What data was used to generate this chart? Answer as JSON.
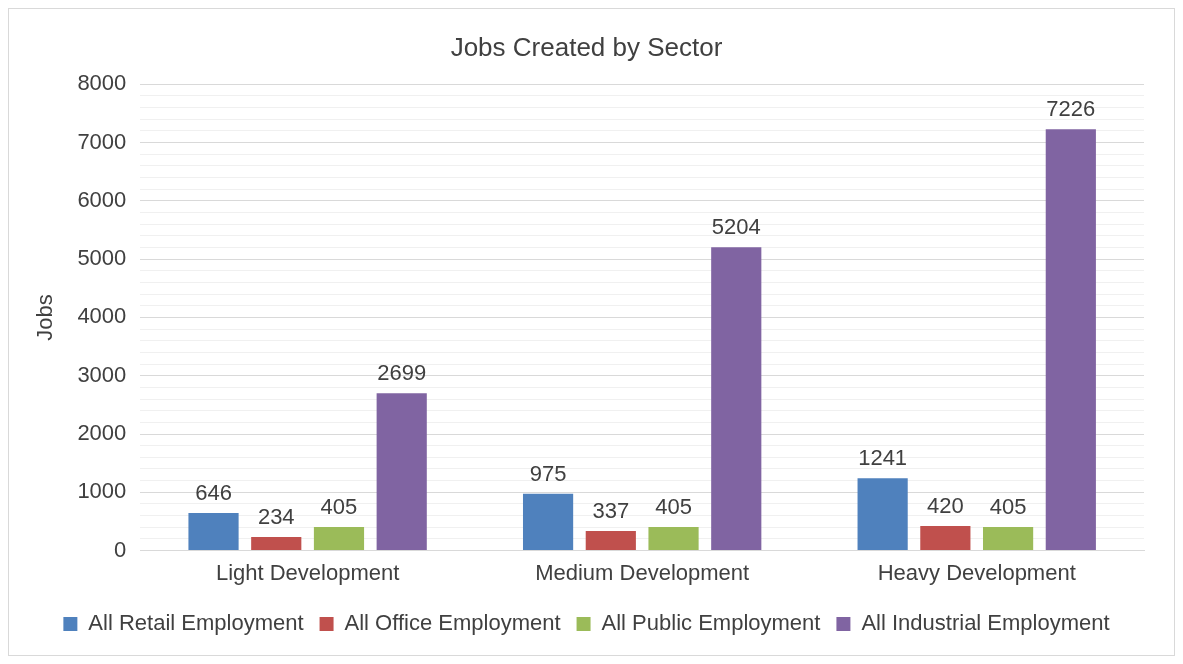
{
  "chart_data": {
    "type": "bar",
    "title": "Jobs Created by Sector",
    "ylabel": "Jobs",
    "categories": [
      "Light Development",
      "Medium Development",
      "Heavy Development"
    ],
    "series": [
      {
        "name": "All Retail Employment",
        "color": "#4f81bd",
        "values": [
          646,
          975,
          1241
        ]
      },
      {
        "name": "All Office Employment",
        "color": "#c0504d",
        "values": [
          234,
          337,
          420
        ]
      },
      {
        "name": "All Public Employment",
        "color": "#9bbb59",
        "values": [
          405,
          405,
          405
        ]
      },
      {
        "name": "All Industrial Employment",
        "color": "#8064a2",
        "values": [
          2699,
          5204,
          7226
        ]
      }
    ],
    "ylim": [
      0,
      8000
    ],
    "yticks": [
      0,
      {
        "value": 200,
        "label": null
      },
      {
        "value": 400,
        "label": null
      },
      {
        "value": 600,
        "label": null
      },
      {
        "value": 800,
        "label": null
      },
      1000,
      {
        "value": 1200,
        "label": null
      },
      {
        "value": 1400,
        "label": null
      },
      {
        "value": 1600,
        "label": null
      },
      {
        "value": 1800,
        "label": null
      },
      2000,
      {
        "value": 2200,
        "label": null
      },
      {
        "value": 2400,
        "label": null
      },
      {
        "value": 2600,
        "label": null
      },
      {
        "value": 2800,
        "label": null
      },
      3000,
      {
        "value": 3200,
        "label": null
      },
      {
        "value": 3400,
        "label": null
      },
      {
        "value": 3600,
        "label": null
      },
      {
        "value": 3800,
        "label": null
      },
      4000,
      {
        "value": 4200,
        "label": null
      },
      {
        "value": 4400,
        "label": null
      },
      {
        "value": 4600,
        "label": null
      },
      {
        "value": 4800,
        "label": null
      },
      5000,
      {
        "value": 5200,
        "label": null
      },
      {
        "value": 5400,
        "label": null
      },
      {
        "value": 5600,
        "label": null
      },
      {
        "value": 5800,
        "label": null
      },
      6000,
      {
        "value": 6200,
        "label": null
      },
      {
        "value": 6400,
        "label": null
      },
      {
        "value": 6600,
        "label": null
      },
      {
        "value": 6800,
        "label": null
      },
      7000,
      {
        "value": 7200,
        "label": null
      },
      {
        "value": 7400,
        "label": null
      },
      {
        "value": 7600,
        "label": null
      },
      {
        "value": 7800,
        "label": null
      },
      8000
    ],
    "grid": "y",
    "legend": "bottom",
    "data_labels": true
  }
}
